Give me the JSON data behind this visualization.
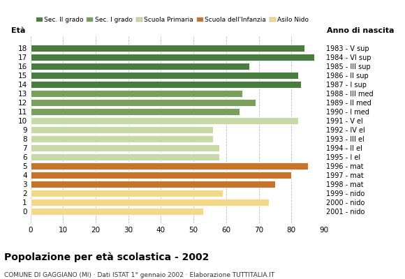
{
  "ages": [
    18,
    17,
    16,
    15,
    14,
    13,
    12,
    11,
    10,
    9,
    8,
    7,
    6,
    5,
    4,
    3,
    2,
    1,
    0
  ],
  "values": [
    84,
    87,
    67,
    82,
    83,
    65,
    69,
    64,
    82,
    56,
    56,
    58,
    58,
    85,
    80,
    75,
    59,
    73,
    53
  ],
  "anno_nascita": [
    "1983 - V sup",
    "1984 - VI sup",
    "1985 - III sup",
    "1986 - II sup",
    "1987 - I sup",
    "1988 - III med",
    "1989 - II med",
    "1990 - I med",
    "1991 - V el",
    "1992 - IV el",
    "1993 - III el",
    "1994 - II el",
    "1995 - I el",
    "1996 - mat",
    "1997 - mat",
    "1998 - mat",
    "1999 - nido",
    "2000 - nido",
    "2001 - nido"
  ],
  "colors": [
    "#4a7c3f",
    "#4a7c3f",
    "#4a7c3f",
    "#4a7c3f",
    "#4a7c3f",
    "#7a9e5c",
    "#7a9e5c",
    "#7a9e5c",
    "#c8d9a8",
    "#c8d9a8",
    "#c8d9a8",
    "#c8d9a8",
    "#c8d9a8",
    "#c8732a",
    "#c8732a",
    "#c8732a",
    "#f5d98b",
    "#f5d98b",
    "#f5d98b"
  ],
  "legend_labels": [
    "Sec. II grado",
    "Sec. I grado",
    "Scuola Primaria",
    "Scuola dell'Infanzia",
    "Asilo Nido"
  ],
  "legend_colors": [
    "#4a7c3f",
    "#7a9e5c",
    "#c8d9a8",
    "#c8732a",
    "#f5d98b"
  ],
  "title": "Popolazione per età scolastica - 2002",
  "subtitle": "COMUNE DI GAGGIANO (MI) · Dati ISTAT 1° gennaio 2002 · Elaborazione TUTTITALIA.IT",
  "xlabel_age": "Età",
  "xlabel_year": "Anno di nascita",
  "xlim": [
    0,
    90
  ],
  "xticks": [
    0,
    10,
    20,
    30,
    40,
    50,
    60,
    70,
    80,
    90
  ],
  "bg_color": "#ffffff",
  "grid_color": "#bbbbbb"
}
